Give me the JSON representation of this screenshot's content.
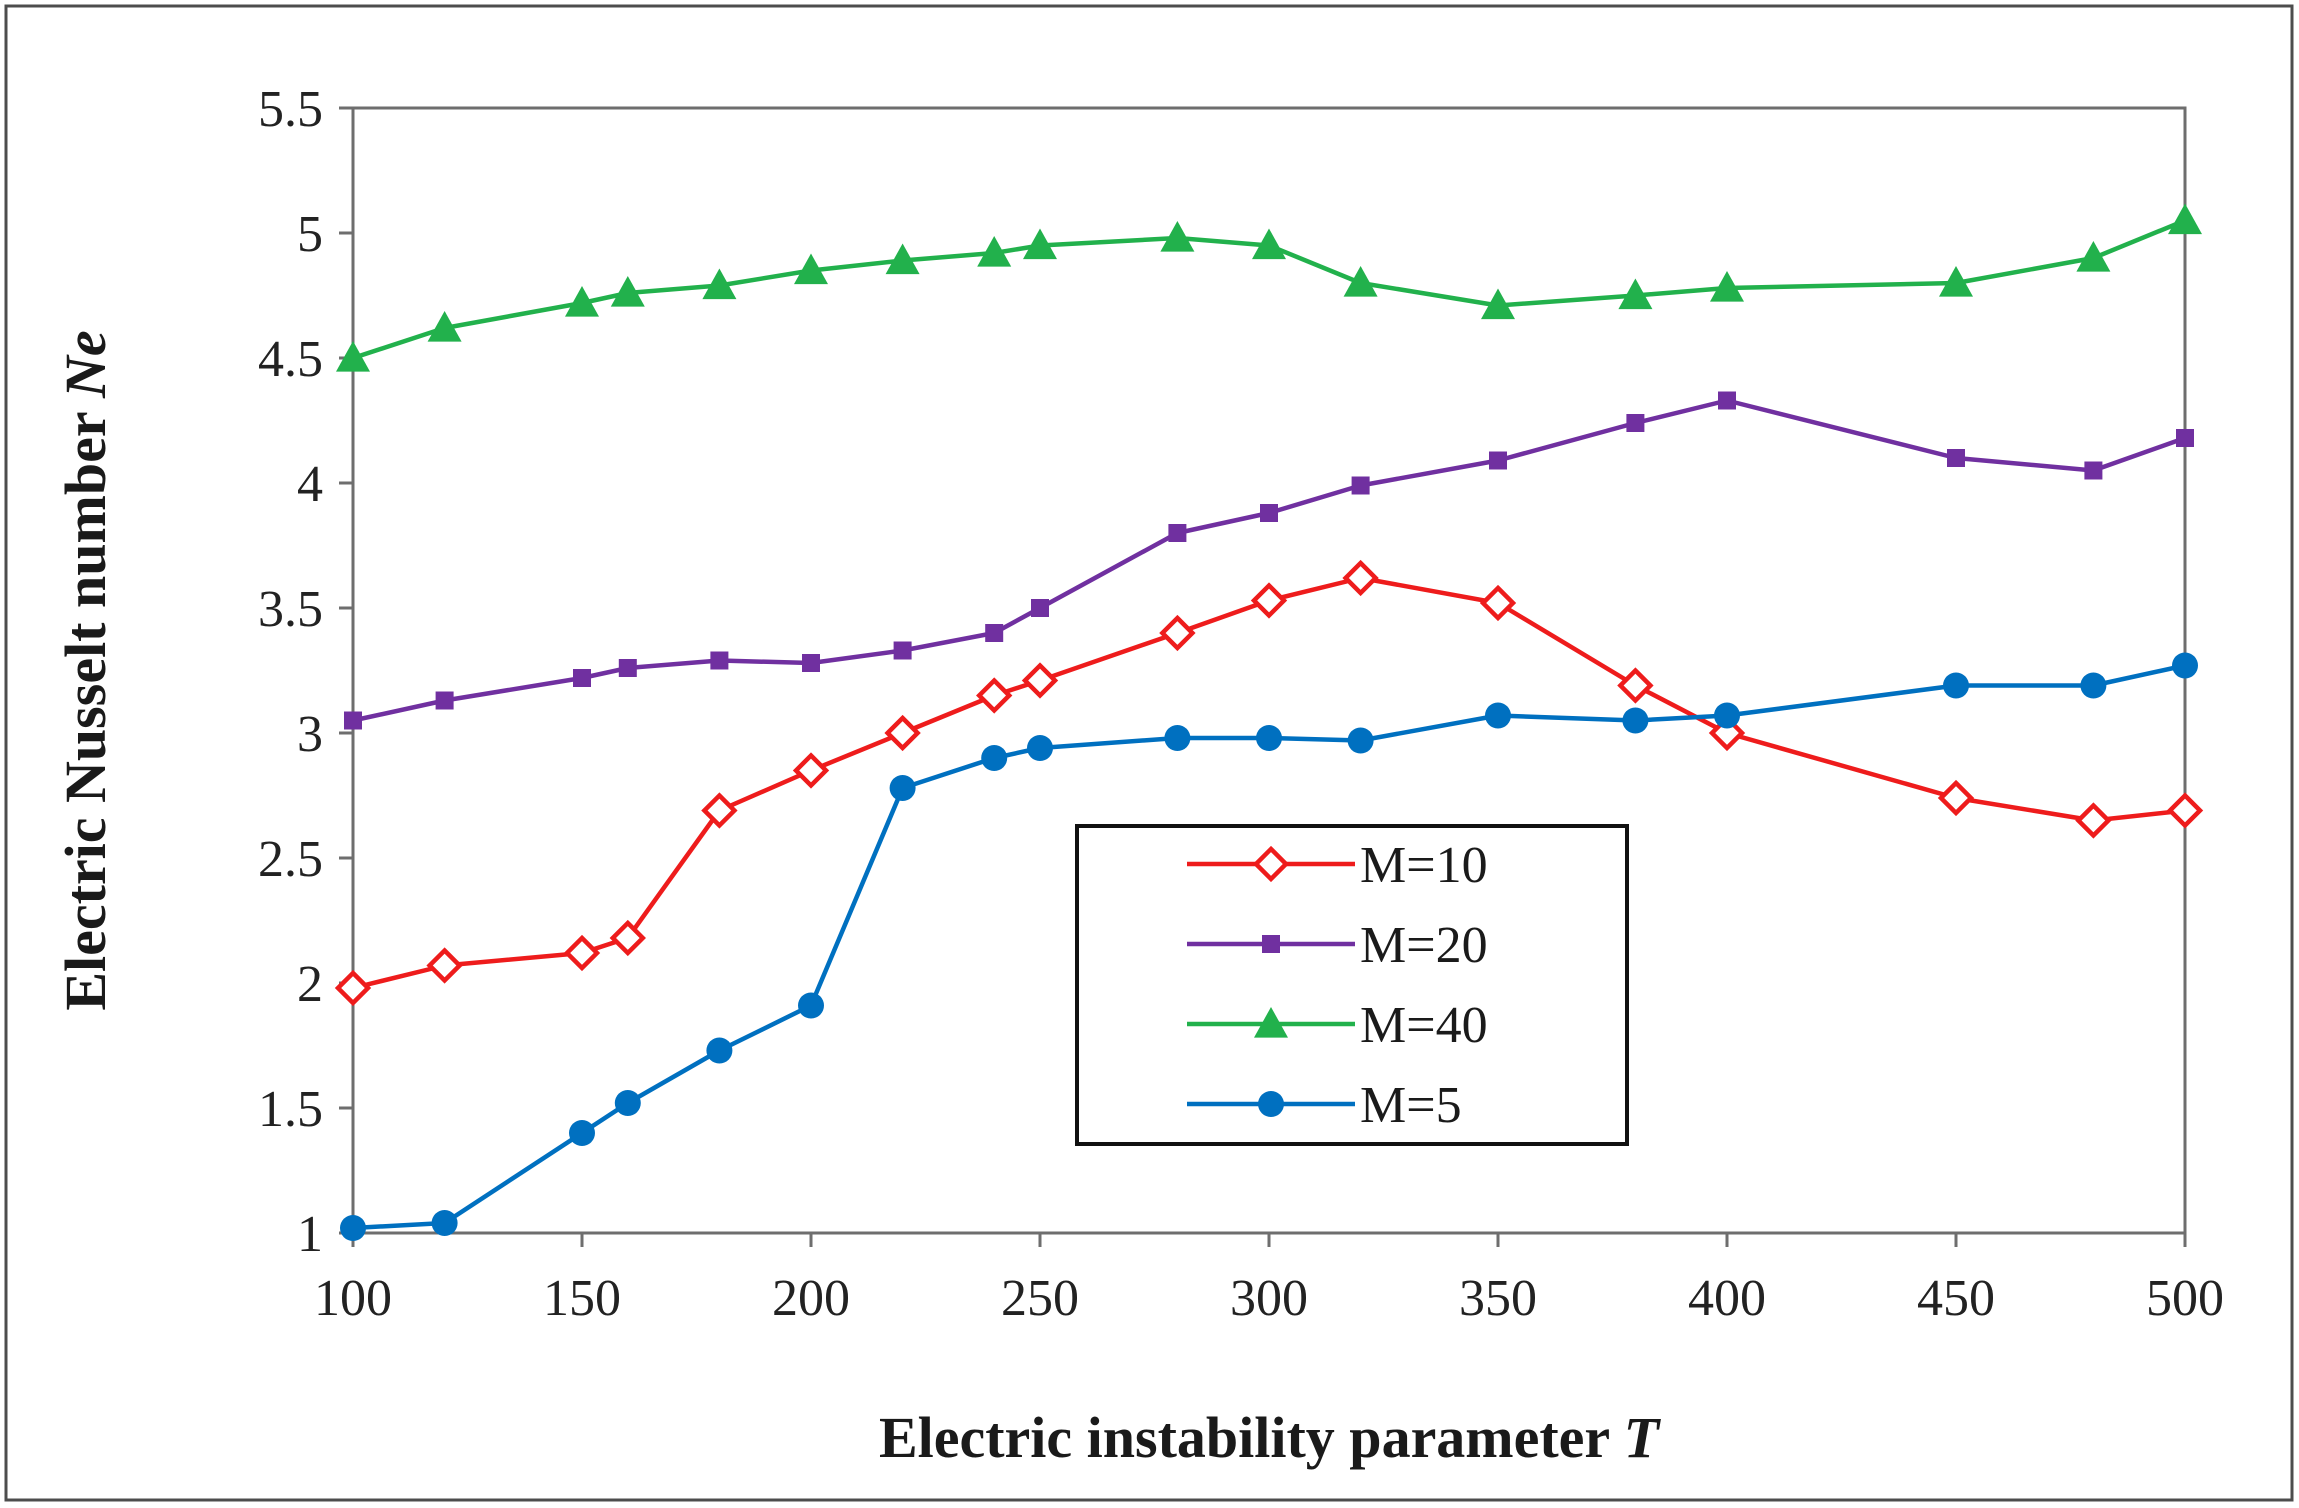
{
  "chart_data": {
    "type": "line",
    "title": "",
    "xlabel": "Electric instability parameter",
    "xlabel_symbol": "T",
    "ylabel": "Electric Nusselt number",
    "ylabel_symbol": "Ne",
    "xlim": [
      100,
      500
    ],
    "ylim": [
      1,
      5.5
    ],
    "xticks": [
      100,
      150,
      200,
      250,
      300,
      350,
      400,
      450,
      500
    ],
    "yticks": [
      1,
      1.5,
      2,
      2.5,
      3,
      3.5,
      4,
      4.5,
      5,
      5.5
    ],
    "ytick_labels": [
      "1",
      "1.5",
      "2",
      "2.5",
      "3",
      "3.5",
      "4",
      "4.5",
      "5",
      "5.5"
    ],
    "grid": false,
    "legend_position": "center-bottom",
    "series": [
      {
        "name": "M=10",
        "color": "#ee1c1c",
        "marker": "open-diamond",
        "x": [
          100,
          120,
          150,
          160,
          180,
          200,
          220,
          240,
          250,
          280,
          300,
          320,
          350,
          380,
          400,
          450,
          480,
          500
        ],
        "y": [
          1.98,
          2.07,
          2.12,
          2.18,
          2.69,
          2.85,
          3.0,
          3.15,
          3.21,
          3.4,
          3.53,
          3.62,
          3.52,
          3.19,
          3.0,
          2.74,
          2.65,
          2.69
        ]
      },
      {
        "name": "M=20",
        "color": "#7030a0",
        "marker": "filled-square",
        "x": [
          100,
          120,
          150,
          160,
          180,
          200,
          220,
          240,
          250,
          280,
          300,
          320,
          350,
          380,
          400,
          450,
          480,
          500
        ],
        "y": [
          3.05,
          3.13,
          3.22,
          3.26,
          3.29,
          3.28,
          3.33,
          3.4,
          3.5,
          3.8,
          3.88,
          3.99,
          4.09,
          4.24,
          4.33,
          4.1,
          4.05,
          4.18
        ]
      },
      {
        "name": "M=40",
        "color": "#22b14c",
        "marker": "filled-triangle",
        "x": [
          100,
          120,
          150,
          160,
          180,
          200,
          220,
          240,
          250,
          280,
          300,
          320,
          350,
          380,
          400,
          450,
          480,
          500
        ],
        "y": [
          4.5,
          4.62,
          4.72,
          4.76,
          4.79,
          4.85,
          4.89,
          4.92,
          4.95,
          4.98,
          4.95,
          4.8,
          4.71,
          4.75,
          4.78,
          4.8,
          4.9,
          5.05
        ]
      },
      {
        "name": "M=5",
        "color": "#0070c0",
        "marker": "filled-circle",
        "x": [
          100,
          120,
          150,
          160,
          180,
          200,
          220,
          240,
          250,
          280,
          300,
          320,
          350,
          380,
          400,
          450,
          480,
          500
        ],
        "y": [
          1.02,
          1.04,
          1.4,
          1.52,
          1.73,
          1.91,
          2.78,
          2.9,
          2.94,
          2.98,
          2.98,
          2.97,
          3.07,
          3.05,
          3.07,
          3.19,
          3.19,
          3.27
        ]
      }
    ]
  }
}
